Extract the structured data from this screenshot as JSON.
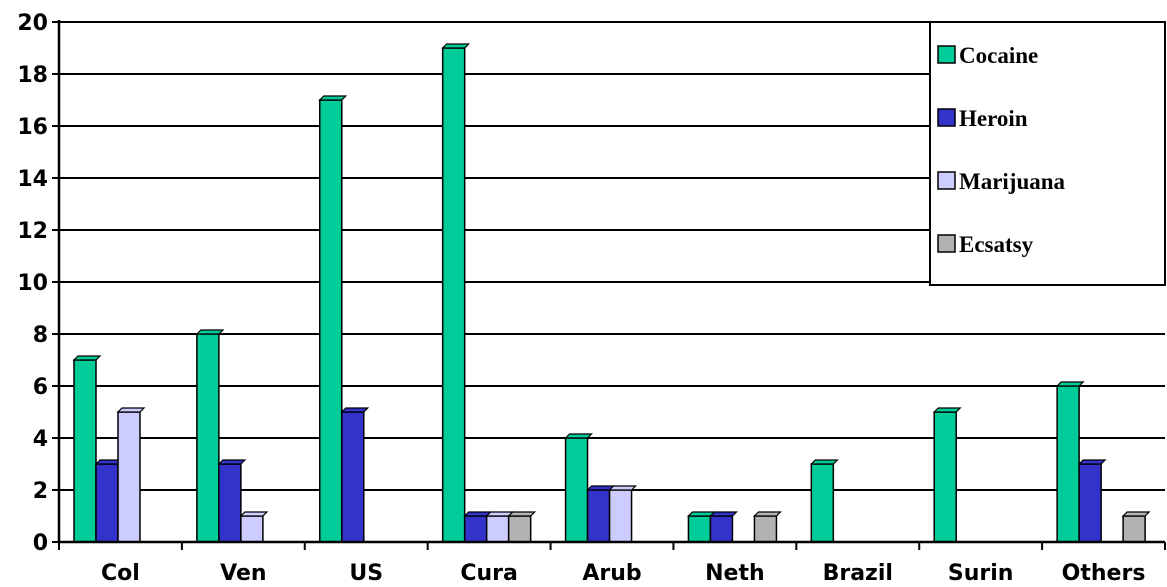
{
  "chart_data": {
    "type": "bar",
    "categories": [
      "Col",
      "Ven",
      "US",
      "Cura",
      "Arub",
      "Neth",
      "Brazil",
      "Surin",
      "Others"
    ],
    "series": [
      {
        "name": "Cocaine",
        "color": "#00cc99",
        "values": [
          7,
          8,
          17,
          19,
          4,
          1,
          3,
          5,
          6
        ]
      },
      {
        "name": "Heroin",
        "color": "#3333cc",
        "values": [
          3,
          3,
          5,
          1,
          2,
          1,
          0,
          0,
          3
        ]
      },
      {
        "name": "Marijuana",
        "color": "#ccccff",
        "values": [
          5,
          1,
          0,
          1,
          2,
          0,
          0,
          0,
          0
        ]
      },
      {
        "name": "Ecsatsy",
        "color": "#b2b2b2",
        "values": [
          0,
          0,
          0,
          1,
          0,
          1,
          0,
          0,
          1
        ]
      }
    ],
    "ylim": [
      0,
      20
    ],
    "yticks": [
      "0",
      "2",
      "4",
      "6",
      "8",
      "10",
      "12",
      "14",
      "16",
      "18",
      "20"
    ],
    "grid": true,
    "legend_position": "top-right",
    "xlabel": "",
    "ylabel": "",
    "title": ""
  }
}
